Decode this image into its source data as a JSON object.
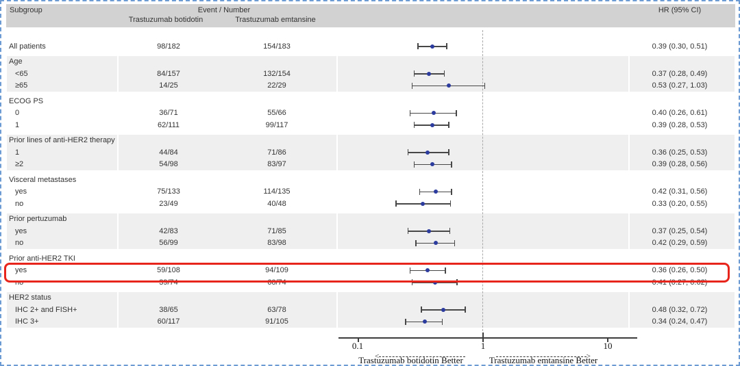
{
  "header": {
    "subgroup_label": "Subgroup",
    "event_number_label": "Event / Number",
    "arm1_label": "Trastuzumab botidotin",
    "arm2_label": "Trastuzumab emtansine",
    "hr_label": "HR (95% CI)"
  },
  "axis": {
    "tick_labels": [
      "0.1",
      "1",
      "10"
    ],
    "left_arrow_head": "<",
    "right_arrow_head": ">",
    "left_better": "Trastuzumab botidotin Better",
    "right_better": "Trastuzumab emtansine Better"
  },
  "highlight": {
    "color": "#e8251c",
    "subgroup": "Prior anti-HER2 TKI",
    "row": "yes"
  },
  "colors": {
    "frame_border": "#6b9bd2",
    "header_band": "#d2d2d2",
    "row_band": "#efefef",
    "marker": "#2c3b9e",
    "ci_bar": "#474747",
    "reference_line": "#a8a8a8",
    "text": "#333333"
  },
  "chart_data": {
    "type": "forest",
    "x_scale": "log10",
    "xlim": [
      0.1,
      10
    ],
    "x_ticks": [
      0.1,
      1,
      10
    ],
    "reference_line": 1,
    "marker_color": "#2c3b9e",
    "arms": [
      "Trastuzumab botidotin",
      "Trastuzumab emtansine"
    ],
    "value_column": "HR (95% CI)",
    "groups": [
      {
        "heading": null,
        "shaded": false,
        "rows": [
          {
            "label": "All patients",
            "arm1": "98/182",
            "arm2": "154/183",
            "hr": 0.39,
            "lo": 0.3,
            "hi": 0.51,
            "hr_text": "0.39 (0.30, 0.51)"
          }
        ]
      },
      {
        "heading": "Age",
        "shaded": true,
        "rows": [
          {
            "label": "<65",
            "arm1": "84/157",
            "arm2": "132/154",
            "hr": 0.37,
            "lo": 0.28,
            "hi": 0.49,
            "hr_text": "0.37 (0.28, 0.49)"
          },
          {
            "label": "≥65",
            "arm1": "14/25",
            "arm2": "22/29",
            "hr": 0.53,
            "lo": 0.27,
            "hi": 1.03,
            "hr_text": "0.53 (0.27, 1.03)"
          }
        ]
      },
      {
        "heading": "ECOG PS",
        "shaded": false,
        "rows": [
          {
            "label": "0",
            "arm1": "36/71",
            "arm2": "55/66",
            "hr": 0.4,
            "lo": 0.26,
            "hi": 0.61,
            "hr_text": "0.40 (0.26, 0.61)"
          },
          {
            "label": "1",
            "arm1": "62/111",
            "arm2": "99/117",
            "hr": 0.39,
            "lo": 0.28,
            "hi": 0.53,
            "hr_text": "0.39 (0.28, 0.53)"
          }
        ]
      },
      {
        "heading": "Prior lines of anti-HER2 therapy",
        "shaded": true,
        "rows": [
          {
            "label": "1",
            "arm1": "44/84",
            "arm2": "71/86",
            "hr": 0.36,
            "lo": 0.25,
            "hi": 0.53,
            "hr_text": "0.36 (0.25, 0.53)"
          },
          {
            "label": "≥2",
            "arm1": "54/98",
            "arm2": "83/97",
            "hr": 0.39,
            "lo": 0.28,
            "hi": 0.56,
            "hr_text": "0.39 (0.28, 0.56)"
          }
        ]
      },
      {
        "heading": "Visceral metastases",
        "shaded": false,
        "rows": [
          {
            "label": "yes",
            "arm1": "75/133",
            "arm2": "114/135",
            "hr": 0.42,
            "lo": 0.31,
            "hi": 0.56,
            "hr_text": "0.42 (0.31, 0.56)"
          },
          {
            "label": "no",
            "arm1": "23/49",
            "arm2": "40/48",
            "hr": 0.33,
            "lo": 0.2,
            "hi": 0.55,
            "hr_text": "0.33 (0.20, 0.55)"
          }
        ]
      },
      {
        "heading": "Prior pertuzumab",
        "shaded": true,
        "rows": [
          {
            "label": "yes",
            "arm1": "42/83",
            "arm2": "71/85",
            "hr": 0.37,
            "lo": 0.25,
            "hi": 0.54,
            "hr_text": "0.37 (0.25, 0.54)"
          },
          {
            "label": "no",
            "arm1": "56/99",
            "arm2": "83/98",
            "hr": 0.42,
            "lo": 0.29,
            "hi": 0.59,
            "hr_text": "0.42 (0.29, 0.59)"
          }
        ]
      },
      {
        "heading": "Prior anti-HER2 TKI",
        "shaded": false,
        "rows": [
          {
            "label": "yes",
            "arm1": "59/108",
            "arm2": "94/109",
            "hr": 0.36,
            "lo": 0.26,
            "hi": 0.5,
            "hr_text": "0.36 (0.26, 0.50)",
            "highlight": true
          },
          {
            "label": "no",
            "arm1": "39/74",
            "arm2": "60/74",
            "hr": 0.41,
            "lo": 0.27,
            "hi": 0.62,
            "hr_text": "0.41 (0.27, 0.62)"
          }
        ]
      },
      {
        "heading": "HER2 status",
        "shaded": true,
        "rows": [
          {
            "label": "IHC 2+ and FISH+",
            "arm1": "38/65",
            "arm2": "63/78",
            "hr": 0.48,
            "lo": 0.32,
            "hi": 0.72,
            "hr_text": "0.48 (0.32, 0.72)"
          },
          {
            "label": "IHC 3+",
            "arm1": "60/117",
            "arm2": "91/105",
            "hr": 0.34,
            "lo": 0.24,
            "hi": 0.47,
            "hr_text": "0.34 (0.24, 0.47)"
          }
        ]
      }
    ]
  }
}
